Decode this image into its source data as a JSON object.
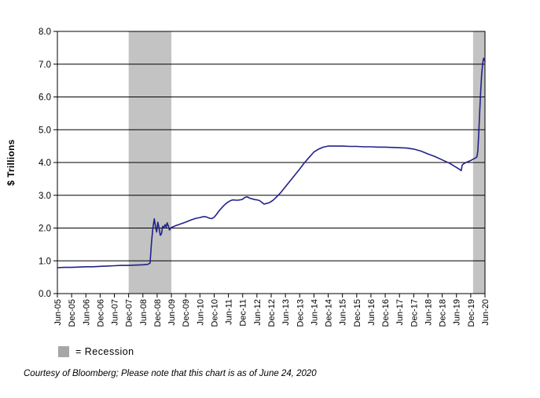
{
  "chart": {
    "y_axis_title": "$ Trillions",
    "legend_label": "= Recession",
    "footer_note": "Courtesy of Bloomberg; Please note that this chart is as of June 24, 2020",
    "colors": {
      "line": "#21218c",
      "recession_band": "#c3c3c3",
      "legend_swatch": "#a6a6a6",
      "grid": "#000000",
      "text": "#000000",
      "background": "#ffffff"
    }
  },
  "chart_data": {
    "type": "line",
    "title": "",
    "xlabel": "",
    "ylabel": "$ Trillions",
    "ylim": [
      0,
      8
    ],
    "xlim_months": [
      0,
      180
    ],
    "grid": "horizontal",
    "y_tick_labels": [
      "0.0",
      "1.0",
      "2.0",
      "3.0",
      "4.0",
      "5.0",
      "6.0",
      "7.0",
      "8.0"
    ],
    "x_tick_labels": [
      "Jun-05",
      "Dec-05",
      "Jun-06",
      "Dec-06",
      "Jun-07",
      "Dec-07",
      "Jun-08",
      "Dec-08",
      "Jun-09",
      "Dec-09",
      "Jun-10",
      "Dec-10",
      "Jun-11",
      "Dec-11",
      "Jun-12",
      "Dec-12",
      "Jun-13",
      "Dec-13",
      "Jun-14",
      "Dec-14",
      "Jun-15",
      "Dec-15",
      "Jun-16",
      "Dec-16",
      "Jun-17",
      "Dec-17",
      "Jun-18",
      "Dec-18",
      "Jun-19",
      "Dec-19",
      "Jun-20"
    ],
    "x_tick_interval_months": 6,
    "recession_bands": [
      {
        "start_month": 30,
        "end_month": 48,
        "start_label": "Dec-07",
        "end_label": "Jun-09"
      },
      {
        "start_month": 175,
        "end_month": 180,
        "start_label": "Jan-20",
        "end_label": "Jun-20"
      }
    ],
    "legend": [
      {
        "swatch": "gray-rect",
        "label": "= Recession"
      }
    ],
    "series": [
      {
        "points": [
          [
            0,
            0.79
          ],
          [
            3,
            0.8
          ],
          [
            6,
            0.8
          ],
          [
            9,
            0.81
          ],
          [
            12,
            0.82
          ],
          [
            15,
            0.82
          ],
          [
            18,
            0.83
          ],
          [
            21,
            0.84
          ],
          [
            24,
            0.85
          ],
          [
            27,
            0.86
          ],
          [
            30,
            0.86
          ],
          [
            33,
            0.87
          ],
          [
            36,
            0.88
          ],
          [
            38,
            0.89
          ],
          [
            39,
            0.93
          ],
          [
            39.6,
            1.55
          ],
          [
            40.2,
            2.0
          ],
          [
            40.8,
            2.28
          ],
          [
            41.3,
            2.05
          ],
          [
            41.8,
            1.88
          ],
          [
            42.3,
            2.18
          ],
          [
            42.8,
            2.0
          ],
          [
            43.3,
            1.78
          ],
          [
            43.8,
            1.82
          ],
          [
            44.3,
            2.05
          ],
          [
            44.8,
            2.02
          ],
          [
            45.3,
            2.1
          ],
          [
            45.8,
            2.03
          ],
          [
            46.2,
            2.16
          ],
          [
            46.8,
            2.05
          ],
          [
            47.2,
            1.94
          ],
          [
            47.6,
            1.98
          ],
          [
            48,
            2.02
          ],
          [
            50,
            2.08
          ],
          [
            52,
            2.13
          ],
          [
            54,
            2.18
          ],
          [
            56,
            2.24
          ],
          [
            58,
            2.29
          ],
          [
            60,
            2.32
          ],
          [
            61,
            2.34
          ],
          [
            62,
            2.35
          ],
          [
            63,
            2.33
          ],
          [
            64,
            2.3
          ],
          [
            65,
            2.29
          ],
          [
            66,
            2.33
          ],
          [
            67,
            2.42
          ],
          [
            68,
            2.52
          ],
          [
            69,
            2.6
          ],
          [
            70,
            2.68
          ],
          [
            71,
            2.75
          ],
          [
            72,
            2.8
          ],
          [
            73,
            2.84
          ],
          [
            74,
            2.86
          ],
          [
            75,
            2.85
          ],
          [
            76,
            2.85
          ],
          [
            77,
            2.86
          ],
          [
            78,
            2.88
          ],
          [
            79,
            2.94
          ],
          [
            80,
            2.95
          ],
          [
            81,
            2.91
          ],
          [
            82,
            2.89
          ],
          [
            83,
            2.87
          ],
          [
            84,
            2.86
          ],
          [
            85,
            2.84
          ],
          [
            86,
            2.79
          ],
          [
            87,
            2.73
          ],
          [
            88,
            2.75
          ],
          [
            89,
            2.77
          ],
          [
            90,
            2.81
          ],
          [
            91,
            2.86
          ],
          [
            92,
            2.93
          ],
          [
            94,
            3.08
          ],
          [
            96,
            3.26
          ],
          [
            98,
            3.44
          ],
          [
            100,
            3.62
          ],
          [
            102,
            3.8
          ],
          [
            104,
            3.99
          ],
          [
            106,
            4.16
          ],
          [
            108,
            4.32
          ],
          [
            110,
            4.41
          ],
          [
            112,
            4.47
          ],
          [
            114,
            4.5
          ],
          [
            117,
            4.5
          ],
          [
            120,
            4.5
          ],
          [
            123,
            4.49
          ],
          [
            126,
            4.49
          ],
          [
            129,
            4.48
          ],
          [
            132,
            4.48
          ],
          [
            135,
            4.47
          ],
          [
            138,
            4.47
          ],
          [
            141,
            4.46
          ],
          [
            144,
            4.45
          ],
          [
            147,
            4.44
          ],
          [
            150,
            4.41
          ],
          [
            153,
            4.35
          ],
          [
            156,
            4.26
          ],
          [
            159,
            4.18
          ],
          [
            162,
            4.08
          ],
          [
            165,
            3.98
          ],
          [
            168,
            3.85
          ],
          [
            169.5,
            3.78
          ],
          [
            170,
            3.75
          ],
          [
            170.4,
            3.92
          ],
          [
            171,
            3.96
          ],
          [
            172,
            4.0
          ],
          [
            173,
            4.03
          ],
          [
            174,
            4.06
          ],
          [
            175,
            4.1
          ],
          [
            176,
            4.14
          ],
          [
            176.6,
            4.17
          ],
          [
            177,
            4.35
          ],
          [
            177.4,
            4.9
          ],
          [
            177.8,
            5.6
          ],
          [
            178.2,
            6.2
          ],
          [
            178.6,
            6.7
          ],
          [
            179,
            7.0
          ],
          [
            179.4,
            7.18
          ],
          [
            179.7,
            7.14
          ],
          [
            180,
            7.08
          ]
        ]
      }
    ]
  }
}
